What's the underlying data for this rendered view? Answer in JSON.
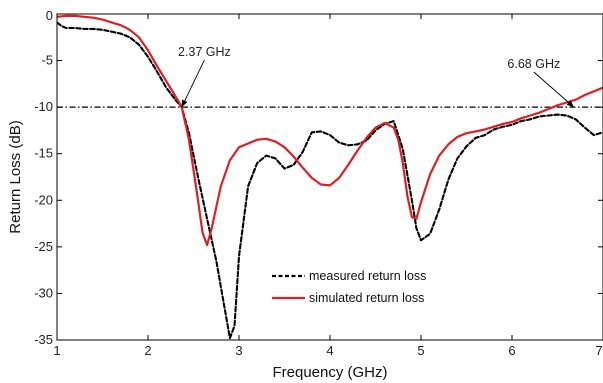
{
  "chart_data": {
    "type": "line",
    "xlabel": "Frequency (GHz)",
    "ylabel": "Return Loss (dB)",
    "xlim": [
      1,
      7
    ],
    "ylim": [
      -35,
      0
    ],
    "xticks": [
      1,
      2,
      3,
      4,
      5,
      6,
      7
    ],
    "xtick_labels": [
      "1",
      "2",
      "3",
      "4",
      "5",
      "6",
      "7"
    ],
    "yticks": [
      0,
      -5,
      -10,
      -15,
      -20,
      -25,
      -30,
      -35
    ],
    "ytick_labels": [
      "0",
      "-5",
      "-10",
      "-15",
      "-20",
      "-25",
      "-30",
      "-35"
    ],
    "grid": false,
    "legend_position": "bottom-center",
    "reference_line": {
      "y": -10,
      "style": "dash-dot",
      "color": "#000000"
    },
    "annotations": [
      {
        "text": "2.37 GHz",
        "x": 2.37,
        "y": -10,
        "text_x": 2.62,
        "text_y": -4.5
      },
      {
        "text": "6.68 GHz",
        "x": 6.68,
        "y": -10,
        "text_x": 6.24,
        "text_y": -5.8
      }
    ],
    "series": [
      {
        "name": "measured return loss",
        "style": "dashed",
        "color": "#000000",
        "x": [
          1.0,
          1.05,
          1.1,
          1.2,
          1.3,
          1.4,
          1.5,
          1.6,
          1.7,
          1.8,
          1.9,
          2.0,
          2.1,
          2.2,
          2.3,
          2.37,
          2.45,
          2.55,
          2.65,
          2.75,
          2.85,
          2.9,
          2.95,
          3.0,
          3.1,
          3.2,
          3.3,
          3.4,
          3.5,
          3.6,
          3.7,
          3.8,
          3.9,
          4.0,
          4.1,
          4.2,
          4.3,
          4.4,
          4.5,
          4.6,
          4.7,
          4.8,
          4.9,
          4.95,
          5.0,
          5.1,
          5.2,
          5.3,
          5.4,
          5.5,
          5.6,
          5.7,
          5.8,
          5.9,
          6.0,
          6.1,
          6.2,
          6.3,
          6.4,
          6.5,
          6.6,
          6.7,
          6.8,
          6.9,
          7.0
        ],
        "y": [
          -0.9,
          -1.3,
          -1.5,
          -1.5,
          -1.6,
          -1.6,
          -1.7,
          -1.9,
          -2.1,
          -2.5,
          -3.3,
          -4.6,
          -6.2,
          -7.9,
          -9.2,
          -10.0,
          -12.8,
          -17.5,
          -22.0,
          -26.5,
          -32.0,
          -34.8,
          -33.5,
          -26.0,
          -18.5,
          -16.0,
          -15.2,
          -15.5,
          -16.6,
          -16.2,
          -14.8,
          -12.7,
          -12.6,
          -13.0,
          -13.8,
          -14.1,
          -14.0,
          -13.6,
          -12.5,
          -11.8,
          -11.5,
          -14.5,
          -20.0,
          -23.0,
          -24.3,
          -23.6,
          -21.0,
          -17.8,
          -15.5,
          -14.2,
          -13.3,
          -13.0,
          -12.4,
          -12.1,
          -11.9,
          -11.5,
          -11.3,
          -11.0,
          -10.9,
          -10.8,
          -10.9,
          -11.3,
          -12.2,
          -13.0,
          -12.7
        ]
      },
      {
        "name": "simulated return loss",
        "style": "solid",
        "color": "#dd1f26",
        "x": [
          1.0,
          1.1,
          1.2,
          1.3,
          1.4,
          1.5,
          1.6,
          1.7,
          1.8,
          1.9,
          2.0,
          2.1,
          2.2,
          2.3,
          2.37,
          2.45,
          2.55,
          2.6,
          2.65,
          2.7,
          2.8,
          2.9,
          3.0,
          3.1,
          3.2,
          3.3,
          3.4,
          3.5,
          3.6,
          3.7,
          3.8,
          3.9,
          4.0,
          4.1,
          4.2,
          4.3,
          4.4,
          4.5,
          4.6,
          4.7,
          4.75,
          4.8,
          4.85,
          4.9,
          4.95,
          5.0,
          5.1,
          5.2,
          5.3,
          5.4,
          5.5,
          5.6,
          5.7,
          5.8,
          5.9,
          6.0,
          6.1,
          6.2,
          6.3,
          6.4,
          6.5,
          6.6,
          6.7,
          6.8,
          6.9,
          7.0
        ],
        "y": [
          -0.3,
          -0.2,
          -0.2,
          -0.3,
          -0.4,
          -0.6,
          -0.9,
          -1.2,
          -1.7,
          -2.5,
          -3.9,
          -5.6,
          -7.2,
          -8.8,
          -10.0,
          -13.5,
          -20.0,
          -23.5,
          -24.8,
          -23.0,
          -18.5,
          -15.7,
          -14.3,
          -13.9,
          -13.5,
          -13.4,
          -13.7,
          -14.3,
          -15.3,
          -16.5,
          -17.6,
          -18.3,
          -18.4,
          -17.6,
          -16.2,
          -14.7,
          -13.3,
          -12.2,
          -11.7,
          -12.2,
          -13.5,
          -16.0,
          -19.5,
          -21.8,
          -22.0,
          -20.2,
          -17.2,
          -15.2,
          -14.0,
          -13.2,
          -12.8,
          -12.6,
          -12.4,
          -12.1,
          -11.8,
          -11.6,
          -11.2,
          -10.9,
          -10.6,
          -10.2,
          -9.8,
          -9.5,
          -9.2,
          -8.7,
          -8.3,
          -7.9
        ]
      }
    ]
  }
}
